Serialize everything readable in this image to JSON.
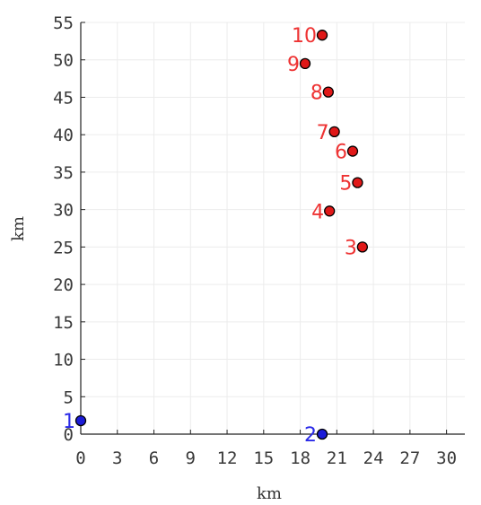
{
  "chart_data": {
    "type": "scatter",
    "title": "",
    "xlabel": "km",
    "ylabel": "km",
    "xlim": [
      0,
      31.5
    ],
    "ylim": [
      0,
      55
    ],
    "x_ticks": [
      0,
      3,
      6,
      9,
      12,
      15,
      18,
      21,
      24,
      27,
      30
    ],
    "y_ticks": [
      0,
      5,
      10,
      15,
      20,
      25,
      30,
      35,
      40,
      45,
      50,
      55
    ],
    "grid": true,
    "legend": "none",
    "colors": {
      "blue": "#1c1cd8",
      "red": "#e01818",
      "red_label": "#ee3333",
      "blue_label": "#2a2ae8"
    },
    "series": [
      {
        "color": "blue",
        "points": [
          {
            "label": "1",
            "x": 0.0,
            "y": 1.8
          },
          {
            "label": "2",
            "x": 19.8,
            "y": 0.0
          }
        ]
      },
      {
        "color": "red",
        "points": [
          {
            "label": "3",
            "x": 23.1,
            "y": 25.0
          },
          {
            "label": "4",
            "x": 20.4,
            "y": 29.8
          },
          {
            "label": "5",
            "x": 22.7,
            "y": 33.6
          },
          {
            "label": "6",
            "x": 22.3,
            "y": 37.8
          },
          {
            "label": "7",
            "x": 20.8,
            "y": 40.4
          },
          {
            "label": "8",
            "x": 20.3,
            "y": 45.7
          },
          {
            "label": "9",
            "x": 18.4,
            "y": 49.5
          },
          {
            "label": "10",
            "x": 19.8,
            "y": 53.3
          }
        ]
      }
    ]
  }
}
